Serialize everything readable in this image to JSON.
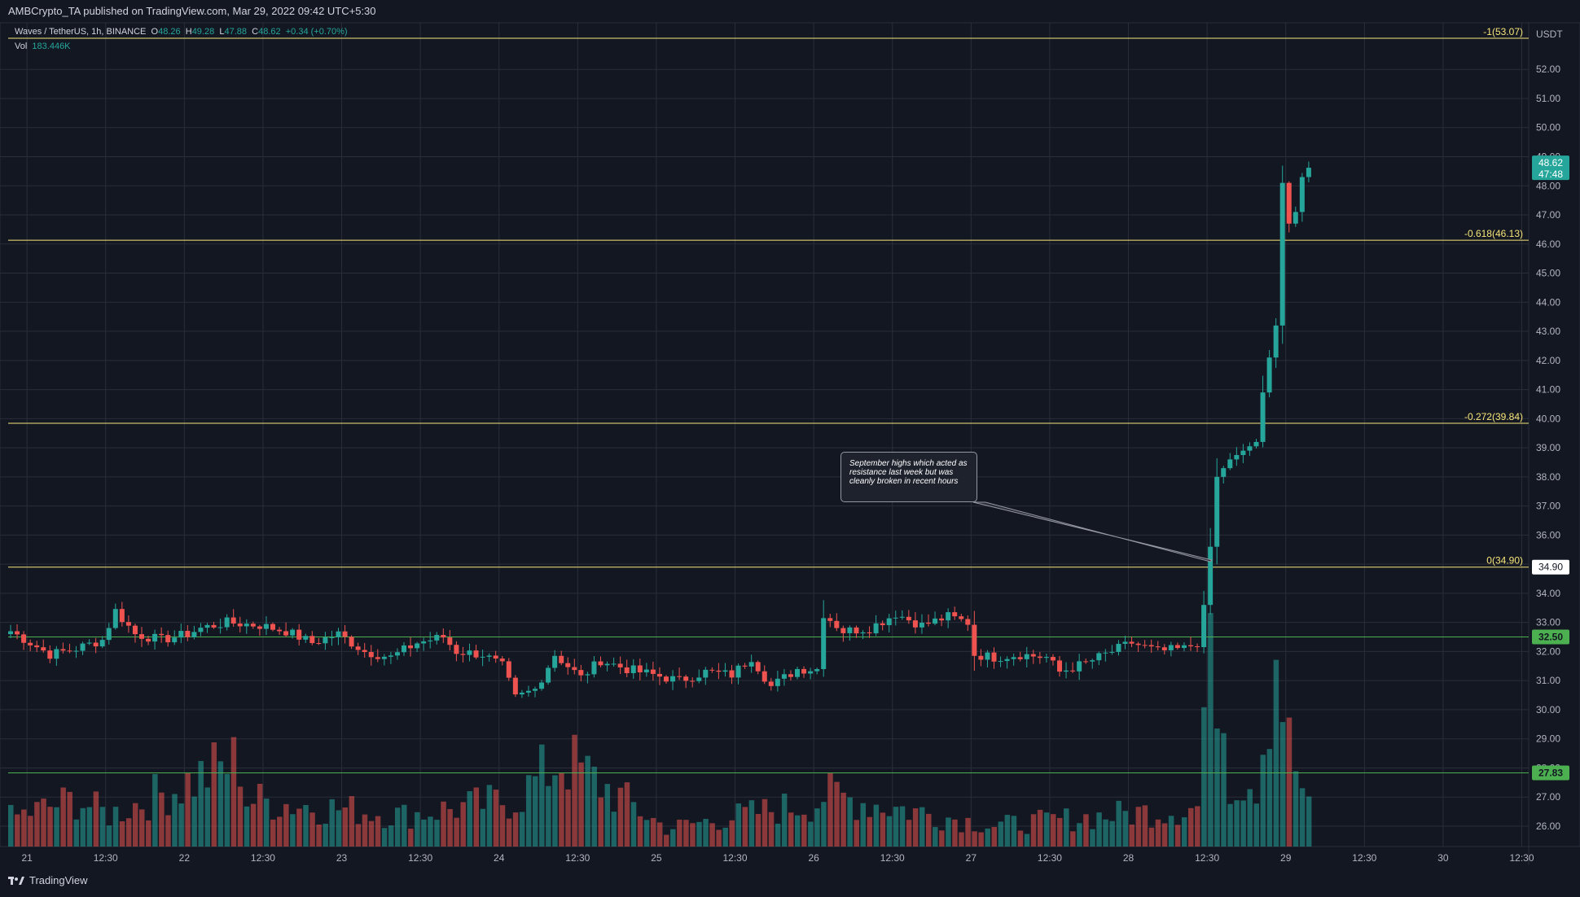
{
  "header": {
    "published": "AMBCrypto_TA published on TradingView.com, Mar 29, 2022 09:42 UTC+5:30"
  },
  "legend": {
    "symbol": "Waves / TetherUS, 1h, BINANCE",
    "o_label": "O",
    "o": "48.26",
    "h_label": "H",
    "h": "49.28",
    "l_label": "L",
    "l": "47.88",
    "c_label": "C",
    "c": "48.62",
    "change": "+0.34 (+0.70%)",
    "vol_label": "Vol",
    "vol": "183.446K"
  },
  "annotation": "September highs which acted as resistance last week but was cleanly broken in recent hours",
  "footer": {
    "brand": "TradingView"
  },
  "colors": {
    "up": "#26a69a",
    "down": "#ef5350",
    "fib": "#f7e57a",
    "support": "#4caf50",
    "bg": "#131722",
    "grid": "#2a2e39"
  },
  "chart_data": {
    "type": "candlestick",
    "symbol": "Waves / TetherUS",
    "interval": "1h",
    "exchange": "BINANCE",
    "currency": "USDT",
    "ylim": [
      25.3,
      53.6
    ],
    "x_ticks": [
      "21",
      "12:30",
      "22",
      "12:30",
      "23",
      "12:30",
      "24",
      "12:30",
      "25",
      "12:30",
      "26",
      "12:30",
      "27",
      "12:30",
      "28",
      "12:30",
      "29",
      "12:30",
      "30",
      "12:30"
    ],
    "y_ticks": [
      "26.00",
      "27.00",
      "28.00",
      "29.00",
      "30.00",
      "31.00",
      "32.00",
      "33.00",
      "34.00",
      "35.00",
      "36.00",
      "37.00",
      "38.00",
      "39.00",
      "40.00",
      "41.00",
      "42.00",
      "43.00",
      "44.00",
      "45.00",
      "46.00",
      "47.00",
      "48.00",
      "49.00",
      "50.00",
      "51.00",
      "52.00"
    ],
    "fib_levels": [
      {
        "label": "-1(53.07)",
        "value": 53.07
      },
      {
        "label": "-0.618(46.13)",
        "value": 46.13
      },
      {
        "label": "-0.272(39.84)",
        "value": 39.84
      },
      {
        "label": "0(34.90)",
        "value": 34.9
      }
    ],
    "horizontal_lines": [
      {
        "label": "32.50",
        "value": 32.5
      },
      {
        "label": "27.83",
        "value": 27.83
      }
    ],
    "price_tags": [
      {
        "label": "34.90",
        "value": 34.9
      },
      {
        "label": "48.62",
        "value": 48.62,
        "countdown": "47:48"
      }
    ],
    "axis_unit_label": "USDT",
    "keypoints": [
      {
        "bar": 0,
        "p": 32.7
      },
      {
        "bar": 6,
        "p": 31.9
      },
      {
        "bar": 10,
        "p": 32.1
      },
      {
        "bar": 14,
        "p": 32.4
      },
      {
        "bar": 16,
        "p": 33.4
      },
      {
        "bar": 19,
        "p": 32.6
      },
      {
        "bar": 23,
        "p": 32.4
      },
      {
        "bar": 27,
        "p": 32.6
      },
      {
        "bar": 29,
        "p": 32.8
      },
      {
        "bar": 33,
        "p": 33.0
      },
      {
        "bar": 38,
        "p": 32.9
      },
      {
        "bar": 42,
        "p": 32.7
      },
      {
        "bar": 46,
        "p": 32.3
      },
      {
        "bar": 50,
        "p": 32.6
      },
      {
        "bar": 54,
        "p": 32.0
      },
      {
        "bar": 58,
        "p": 31.8
      },
      {
        "bar": 62,
        "p": 32.3
      },
      {
        "bar": 66,
        "p": 32.5
      },
      {
        "bar": 68,
        "p": 32.0
      },
      {
        "bar": 72,
        "p": 31.9
      },
      {
        "bar": 75,
        "p": 31.5
      },
      {
        "bar": 77,
        "p": 30.4
      },
      {
        "bar": 80,
        "p": 30.7
      },
      {
        "bar": 83,
        "p": 31.9
      },
      {
        "bar": 87,
        "p": 31.1
      },
      {
        "bar": 90,
        "p": 31.7
      },
      {
        "bar": 94,
        "p": 31.4
      },
      {
        "bar": 98,
        "p": 31.2
      },
      {
        "bar": 102,
        "p": 31.0
      },
      {
        "bar": 106,
        "p": 31.3
      },
      {
        "bar": 110,
        "p": 31.2
      },
      {
        "bar": 113,
        "p": 31.8
      },
      {
        "bar": 116,
        "p": 30.8
      },
      {
        "bar": 120,
        "p": 31.4
      },
      {
        "bar": 123,
        "p": 31.4
      },
      {
        "bar": 124,
        "p": 33.3
      },
      {
        "bar": 127,
        "p": 32.7
      },
      {
        "bar": 131,
        "p": 32.8
      },
      {
        "bar": 135,
        "p": 33.3
      },
      {
        "bar": 139,
        "p": 32.9
      },
      {
        "bar": 143,
        "p": 33.2
      },
      {
        "bar": 146,
        "p": 33.0
      },
      {
        "bar": 147,
        "p": 31.9
      },
      {
        "bar": 150,
        "p": 31.8
      },
      {
        "bar": 154,
        "p": 31.9
      },
      {
        "bar": 158,
        "p": 31.8
      },
      {
        "bar": 160,
        "p": 31.3
      },
      {
        "bar": 164,
        "p": 31.6
      },
      {
        "bar": 168,
        "p": 32.0
      },
      {
        "bar": 171,
        "p": 32.3
      },
      {
        "bar": 175,
        "p": 32.0
      },
      {
        "bar": 179,
        "p": 32.1
      },
      {
        "bar": 181,
        "p": 32.3
      },
      {
        "bar": 182,
        "p": 33.6
      },
      {
        "bar": 183,
        "p": 35.6
      },
      {
        "bar": 184,
        "p": 38.0
      },
      {
        "bar": 186,
        "p": 38.6
      },
      {
        "bar": 188,
        "p": 38.9
      },
      {
        "bar": 190,
        "p": 39.2
      },
      {
        "bar": 191,
        "p": 40.9
      },
      {
        "bar": 192,
        "p": 42.1
      },
      {
        "bar": 193,
        "p": 43.2
      },
      {
        "bar": 194,
        "p": 48.1
      },
      {
        "bar": 195,
        "p": 46.7
      },
      {
        "bar": 196,
        "p": 47.1
      },
      {
        "bar": 197,
        "p": 48.3
      },
      {
        "bar": 198,
        "p": 48.62
      }
    ],
    "volume_keypoints": [
      {
        "bar": 0,
        "v": 110
      },
      {
        "bar": 10,
        "v": 180
      },
      {
        "bar": 15,
        "v": 120
      },
      {
        "bar": 35,
        "v": 330
      },
      {
        "bar": 36,
        "v": 180
      },
      {
        "bar": 60,
        "v": 120
      },
      {
        "bar": 77,
        "v": 180
      },
      {
        "bar": 84,
        "v": 340
      },
      {
        "bar": 100,
        "v": 70
      },
      {
        "bar": 123,
        "v": 170
      },
      {
        "bar": 124,
        "v": 200
      },
      {
        "bar": 150,
        "v": 80
      },
      {
        "bar": 181,
        "v": 150
      },
      {
        "bar": 182,
        "v": 520
      },
      {
        "bar": 184,
        "v": 740
      },
      {
        "bar": 186,
        "v": 270
      },
      {
        "bar": 190,
        "v": 260
      },
      {
        "bar": 191,
        "v": 420
      },
      {
        "bar": 193,
        "v": 780
      },
      {
        "bar": 195,
        "v": 380
      },
      {
        "bar": 198,
        "v": 140
      }
    ],
    "total_bars": 199
  }
}
